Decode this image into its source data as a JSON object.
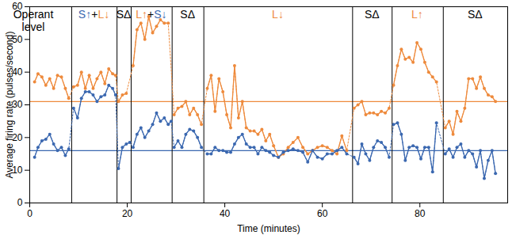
{
  "chart_data": {
    "type": "line",
    "x_label": "Time (minutes)",
    "y_label": "Average firing rate (pulses/second)",
    "xlim": [
      0,
      98
    ],
    "xticks": [
      0,
      20,
      40,
      60,
      80
    ],
    "ylim": [
      0,
      60
    ],
    "yticks": [
      0,
      10,
      20,
      30,
      40,
      50,
      60
    ],
    "grid": false,
    "phases": [
      {
        "start": 0,
        "end": 8.6,
        "label": [
          {
            "text": "Operant",
            "color": "#000000"
          },
          {
            "text": "level",
            "color": "#000000"
          }
        ]
      },
      {
        "start": 8.6,
        "end": 17.9,
        "label": [
          {
            "text": "S↑",
            "color": "#3b68b0"
          },
          {
            "text": "+",
            "color": "#000000"
          },
          {
            "text": "L↓",
            "color": "#ee8a3c"
          }
        ]
      },
      {
        "start": 17.9,
        "end": 20.8,
        "label": [
          {
            "text": "SΔ",
            "color": "#000000"
          }
        ]
      },
      {
        "start": 20.8,
        "end": 29.2,
        "label": [
          {
            "text": "L↑",
            "color": "#ee8a3c"
          },
          {
            "text": "+",
            "color": "#000000"
          },
          {
            "text": "S↓",
            "color": "#3b68b0"
          }
        ]
      },
      {
        "start": 29.2,
        "end": 35.7,
        "label": [
          {
            "text": "SΔ",
            "color": "#000000"
          }
        ]
      },
      {
        "start": 35.7,
        "end": 66.2,
        "label": [
          {
            "text": "L↓",
            "color": "#ee8a3c"
          }
        ]
      },
      {
        "start": 66.2,
        "end": 74.3,
        "label": [
          {
            "text": "SΔ",
            "color": "#000000"
          }
        ]
      },
      {
        "start": 74.3,
        "end": 84.8,
        "label": [
          {
            "text": "L↑",
            "color": "#ee8a3c"
          }
        ]
      },
      {
        "start": 84.8,
        "end": 98,
        "label": [
          {
            "text": "SΔ",
            "color": "#000000"
          }
        ]
      }
    ],
    "reference_lines": [
      {
        "value": 31,
        "color": "#ee8a3c"
      },
      {
        "value": 16,
        "color": "#3b68b0"
      }
    ],
    "series": [
      {
        "color": "#ee8a3c",
        "marker": "circle",
        "x": [
          1,
          1.7,
          2.5,
          3.3,
          4.1,
          4.9,
          5.7,
          6.5,
          7.3,
          8,
          9,
          9.8,
          10.6,
          11.4,
          12.2,
          13,
          13.8,
          14.6,
          15.4,
          16.2,
          17,
          17.6,
          18.2,
          19,
          19.8,
          21.2,
          22,
          22.8,
          23.6,
          24.4,
          25.2,
          26,
          26.8,
          27.6,
          28.4,
          29.6,
          30.4,
          31.2,
          32,
          32.8,
          33.6,
          34.4,
          35.2,
          36.4,
          37.2,
          38,
          38.8,
          39.6,
          40.4,
          41.2,
          42,
          42.8,
          43.6,
          44.4,
          45.2,
          46,
          46.8,
          47.6,
          48.4,
          49.2,
          50,
          51,
          52,
          53,
          54,
          55,
          56,
          57,
          58,
          59,
          60,
          61,
          62,
          63,
          64,
          65,
          66.5,
          67.3,
          68.1,
          68.9,
          69.7,
          70.5,
          71.3,
          72.1,
          72.9,
          73.7,
          74.6,
          75.4,
          76.2,
          77,
          77.8,
          78.6,
          79.4,
          80.2,
          81,
          81.8,
          82.6,
          83.4,
          85.2,
          86,
          86.8,
          87.6,
          88.4,
          89.2,
          90,
          90.8,
          91.6,
          92.4,
          93.2,
          94,
          94.8,
          95.5
        ],
        "values": [
          37,
          39.5,
          38.5,
          36,
          38,
          35,
          39,
          38.5,
          35,
          32,
          35.5,
          36,
          40,
          35,
          39,
          35,
          38,
          40,
          36.5,
          41,
          39.5,
          39,
          31,
          33,
          33.5,
          42,
          53,
          55,
          50,
          57,
          52,
          54,
          56,
          55,
          55,
          27,
          29,
          29.5,
          31,
          27,
          29,
          27,
          24,
          35,
          39,
          28,
          38,
          34,
          27,
          23,
          42,
          26,
          31,
          23,
          22,
          22,
          21,
          22.5,
          19,
          21,
          17.5,
          14,
          15,
          17,
          18.5,
          20,
          17,
          15,
          16,
          17,
          17.5,
          17,
          16,
          15,
          20.5,
          16,
          29,
          30,
          31,
          27,
          27.5,
          27.5,
          27,
          28,
          27.5,
          29,
          36,
          42,
          47,
          44,
          44.5,
          43,
          49,
          47,
          43,
          40,
          38.5,
          37,
          23,
          25,
          21,
          28,
          25,
          29,
          38,
          38,
          35,
          38.5,
          35,
          33,
          32.5,
          31
        ]
      },
      {
        "color": "#3b68b0",
        "marker": "circle",
        "x": [
          1,
          1.7,
          2.5,
          3.3,
          4.1,
          4.9,
          5.7,
          6.5,
          7.3,
          8,
          9,
          9.8,
          10.6,
          11.4,
          12.2,
          13,
          13.8,
          14.6,
          15.4,
          16.2,
          17,
          17.6,
          18.2,
          19,
          19.8,
          20.5,
          21.2,
          22,
          22.8,
          23.6,
          24.4,
          25.2,
          26,
          26.8,
          27.6,
          28.4,
          29,
          29.6,
          30.4,
          31.2,
          32,
          32.8,
          33.6,
          34.4,
          35.2,
          36.4,
          37.2,
          38,
          38.8,
          39.6,
          40.4,
          41.2,
          42,
          42.8,
          43.6,
          44.4,
          45.2,
          46,
          46.8,
          47.6,
          48.4,
          49.2,
          50,
          51,
          52,
          53,
          54,
          55,
          56,
          57,
          58,
          59,
          60,
          61,
          62,
          63,
          64,
          65,
          66.5,
          67.3,
          68.1,
          68.9,
          69.7,
          70.5,
          71.3,
          72.1,
          72.9,
          73.7,
          74.6,
          75.4,
          76.2,
          77,
          77.8,
          78.6,
          79.4,
          80.2,
          81,
          81.8,
          82.6,
          83.4,
          85.2,
          86,
          86.8,
          87.6,
          88.4,
          89.2,
          90,
          90.8,
          91.6,
          92.4,
          93.2,
          94,
          94.8,
          95.5
        ],
        "values": [
          14,
          17,
          19,
          19.5,
          21,
          18,
          16,
          17,
          14.5,
          16.5,
          29,
          26,
          32,
          34,
          34,
          33,
          31,
          32.5,
          33,
          36,
          35,
          33,
          10.5,
          17,
          18,
          18.5,
          17,
          21,
          23,
          20,
          22,
          24,
          27.5,
          25,
          26,
          24,
          25,
          17,
          19,
          17,
          21,
          22.5,
          22,
          20,
          17,
          15,
          15,
          17,
          16,
          16,
          15.5,
          15.5,
          18,
          20,
          21,
          18,
          17,
          17,
          15,
          17,
          16,
          15.5,
          14.5,
          14,
          15.5,
          16,
          16.5,
          16,
          15.5,
          12.5,
          16,
          14,
          13.5,
          15,
          15,
          16,
          17,
          15,
          14,
          12,
          18,
          15,
          13,
          17,
          19,
          18.5,
          17,
          14,
          24,
          24.5,
          21,
          13,
          17,
          17.5,
          17,
          13.5,
          17,
          17,
          9.5,
          24.5,
          15,
          16.5,
          14,
          17,
          18,
          14,
          16,
          15,
          11,
          16,
          7.5,
          13,
          16,
          9
        ]
      }
    ]
  }
}
